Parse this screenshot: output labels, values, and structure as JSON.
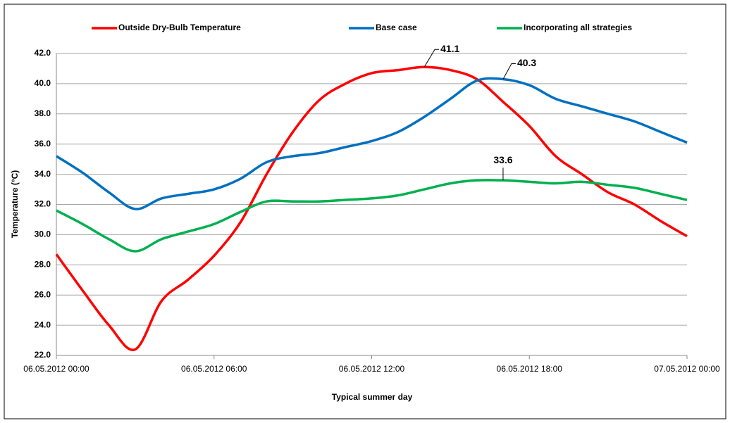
{
  "chart_data": {
    "type": "line",
    "xlabel": "Typical summer day",
    "ylabel": "Temperature (°C)",
    "x": [
      0,
      1,
      2,
      3,
      4,
      5,
      6,
      7,
      8,
      9,
      10,
      11,
      12,
      13,
      14,
      15,
      16,
      17,
      18,
      19,
      20,
      21,
      22,
      23,
      24
    ],
    "series": [
      {
        "name": "Outside Dry-Bulb Temperature",
        "color": "#ff0000",
        "values": [
          28.7,
          26.3,
          24.0,
          22.4,
          25.6,
          27.0,
          28.6,
          30.8,
          34.0,
          36.8,
          38.9,
          40.0,
          40.7,
          40.9,
          41.1,
          40.9,
          40.3,
          38.8,
          37.2,
          35.2,
          34.0,
          32.8,
          32.0,
          30.9,
          29.9
        ]
      },
      {
        "name": "Base case",
        "color": "#0070c0",
        "values": [
          35.2,
          34.1,
          32.8,
          31.7,
          32.4,
          32.7,
          33.0,
          33.7,
          34.8,
          35.2,
          35.4,
          35.8,
          36.2,
          36.8,
          37.8,
          39.0,
          40.2,
          40.3,
          39.9,
          39.0,
          38.5,
          38.0,
          37.5,
          36.8,
          36.1
        ]
      },
      {
        "name": "Incorporating all strategies",
        "color": "#00b050",
        "values": [
          31.6,
          30.7,
          29.7,
          28.9,
          29.7,
          30.2,
          30.7,
          31.5,
          32.2,
          32.2,
          32.2,
          32.3,
          32.4,
          32.6,
          33.0,
          33.4,
          33.6,
          33.6,
          33.5,
          33.4,
          33.5,
          33.3,
          33.1,
          32.7,
          32.3
        ]
      }
    ],
    "annotations": [
      {
        "text": "41.1",
        "x": 14,
        "y": 41.1
      },
      {
        "text": "40.3",
        "x": 17,
        "y": 40.3
      },
      {
        "text": "33.6",
        "x": 17,
        "y": 33.6
      }
    ],
    "xlim": [
      0,
      24
    ],
    "xticks": [
      {
        "value": 0,
        "label": "06.05.2012 00:00"
      },
      {
        "value": 6,
        "label": "06.05.2012 06:00"
      },
      {
        "value": 12,
        "label": "06.05.2012 12:00"
      },
      {
        "value": 18,
        "label": "06.05.2012 18:00"
      },
      {
        "value": 24,
        "label": "07.05.2012 00:00"
      }
    ],
    "ylim": [
      22,
      42
    ],
    "yticks": [
      {
        "value": 22,
        "label": "22.0"
      },
      {
        "value": 24,
        "label": "24.0"
      },
      {
        "value": 26,
        "label": "26.0"
      },
      {
        "value": 28,
        "label": "28.0"
      },
      {
        "value": 30,
        "label": "30.0"
      },
      {
        "value": 32,
        "label": "32.0"
      },
      {
        "value": 34,
        "label": "34.0"
      },
      {
        "value": 36,
        "label": "36.0"
      },
      {
        "value": 38,
        "label": "38.0"
      },
      {
        "value": 40,
        "label": "40.0"
      },
      {
        "value": 42,
        "label": "42.0"
      }
    ],
    "grid": true,
    "legend": "top"
  }
}
